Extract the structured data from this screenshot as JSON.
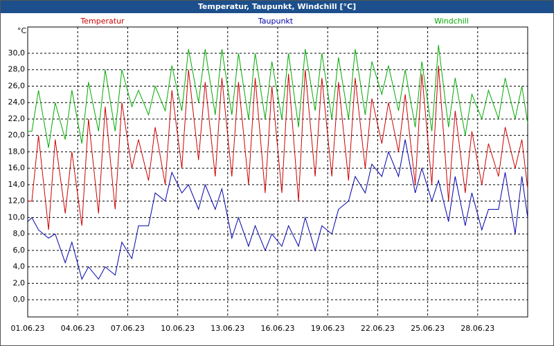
{
  "chart_data": {
    "type": "line",
    "title": "Temperatur, Taupunkt, Windchill [°C]",
    "y_label": "°C",
    "x": [
      0,
      0.25,
      0.65,
      1.25,
      1.65,
      2.25,
      2.65,
      3.25,
      3.65,
      4.25,
      4.65,
      5.25,
      5.65,
      6.25,
      6.65,
      7.25,
      7.65,
      8.25,
      8.65,
      9.25,
      9.65,
      10.25,
      10.65,
      11.25,
      11.65,
      12.25,
      12.65,
      13.25,
      13.65,
      14.25,
      14.65,
      15.25,
      15.65,
      16.25,
      16.65,
      17.25,
      17.65,
      18.25,
      18.65,
      19.25,
      19.65,
      20.25,
      20.65,
      21.25,
      21.65,
      22.25,
      22.65,
      23.25,
      23.65,
      24.25,
      24.65,
      25.25,
      25.65,
      26.25,
      26.65,
      27.25,
      27.65,
      28.25,
      28.65,
      29.25,
      29.65,
      30
    ],
    "series": [
      {
        "name": "Temperatur",
        "color": "#cc0000",
        "values": [
          12,
          12,
          20,
          8.5,
          19.5,
          10.5,
          18,
          9,
          22,
          10.5,
          23.5,
          11,
          24,
          16,
          19.5,
          14.5,
          21,
          14,
          25.5,
          16,
          28,
          17,
          26.5,
          15,
          27,
          15,
          26.5,
          14,
          27,
          13,
          26,
          13,
          27.5,
          12,
          28,
          15,
          27,
          15,
          26.5,
          14.5,
          27,
          16,
          24.5,
          19,
          24,
          18,
          25,
          14,
          27.5,
          14,
          28.5,
          12,
          23,
          13,
          20.5,
          14,
          19,
          15,
          21,
          16,
          19.5,
          13.5
        ]
      },
      {
        "name": "Taupunkt",
        "color": "#0000aa",
        "values": [
          9.5,
          10,
          8.5,
          7.5,
          8,
          4.5,
          7,
          2.5,
          4,
          2.5,
          4,
          3,
          7,
          5,
          9,
          9,
          13,
          12,
          15.5,
          13,
          14,
          11,
          14,
          11,
          13.5,
          7.5,
          10,
          6.5,
          9,
          6,
          8,
          6.5,
          9,
          6.5,
          10,
          6,
          9,
          8,
          11,
          12,
          15,
          13,
          16.5,
          15,
          18,
          15,
          19.5,
          13,
          16,
          12,
          14.5,
          9.5,
          15,
          9,
          13,
          8.5,
          11,
          11,
          15.5,
          8,
          15,
          10
        ]
      },
      {
        "name": "Windchill",
        "color": "#00aa00",
        "values": [
          20.5,
          20.5,
          25.5,
          18.5,
          24,
          19.5,
          25.5,
          19,
          26.5,
          20.5,
          28,
          20.5,
          28,
          23.5,
          25.5,
          22.5,
          26,
          23,
          28.5,
          23,
          30.5,
          24,
          30.5,
          22.5,
          30.5,
          22.5,
          30,
          22,
          30,
          22,
          29,
          22,
          30,
          21,
          30.5,
          23,
          30,
          22,
          29.5,
          22,
          30.5,
          22.5,
          29,
          25,
          28.5,
          23,
          28,
          21,
          29,
          20.5,
          31,
          21,
          27,
          20,
          25,
          22,
          25.5,
          22,
          27,
          22,
          26,
          21.5
        ]
      }
    ],
    "xlim": [
      0,
      30
    ],
    "ylim": [
      -2.1,
      33.2
    ],
    "xticks": [
      {
        "value": 0,
        "label": "01.06.23"
      },
      {
        "value": 3,
        "label": "04.06.23"
      },
      {
        "value": 6,
        "label": "07.06.23"
      },
      {
        "value": 9,
        "label": "10.06.23"
      },
      {
        "value": 12,
        "label": "13.06.23"
      },
      {
        "value": 15,
        "label": "16.06.23"
      },
      {
        "value": 18,
        "label": "19.06.23"
      },
      {
        "value": 21,
        "label": "22.06.23"
      },
      {
        "value": 24,
        "label": "25.06.23"
      },
      {
        "value": 27,
        "label": "28.06.23"
      }
    ],
    "yticks": [
      {
        "value": 0,
        "label": "0,0"
      },
      {
        "value": 2,
        "label": "2,0"
      },
      {
        "value": 4,
        "label": "4,0"
      },
      {
        "value": 6,
        "label": "6,0"
      },
      {
        "value": 8,
        "label": "8,0"
      },
      {
        "value": 10,
        "label": "10,0"
      },
      {
        "value": 12,
        "label": "12,0"
      },
      {
        "value": 14,
        "label": "14,0"
      },
      {
        "value": 16,
        "label": "16,0"
      },
      {
        "value": 18,
        "label": "18,0"
      },
      {
        "value": 20,
        "label": "20,0"
      },
      {
        "value": 22,
        "label": "22,0"
      },
      {
        "value": 24,
        "label": "24,0"
      },
      {
        "value": 26,
        "label": "26,0"
      },
      {
        "value": 28,
        "label": "28,0"
      },
      {
        "value": 30,
        "label": "30,0"
      }
    ],
    "grid": true
  }
}
